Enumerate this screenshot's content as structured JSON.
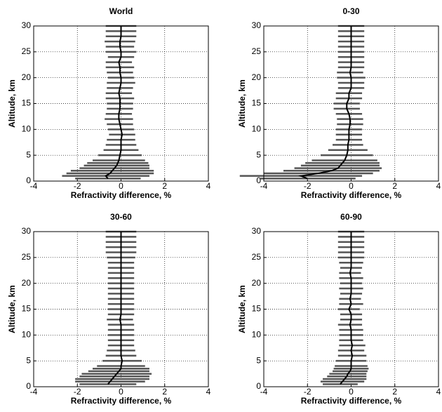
{
  "chart_data": [
    {
      "type": "errorbar",
      "title": "World",
      "xlabel": "Refractivity difference, %",
      "ylabel": "Altitude, km",
      "color": "#000000",
      "bar_color": "#555555",
      "y": [
        0.5,
        1,
        1.5,
        2,
        2.5,
        3,
        3.5,
        4,
        5,
        6,
        7,
        8,
        9,
        10,
        11,
        12,
        13,
        14,
        15,
        16,
        17,
        18,
        19,
        20,
        21,
        22,
        23,
        24,
        25,
        26,
        27,
        28,
        29,
        30
      ],
      "values": [
        -0.6,
        -0.7,
        -0.5,
        -0.4,
        -0.3,
        -0.2,
        -0.15,
        -0.1,
        -0.05,
        0,
        0,
        0,
        0.05,
        0,
        -0.05,
        -0.1,
        -0.1,
        -0.05,
        -0.05,
        -0.05,
        -0.1,
        -0.05,
        0,
        0,
        -0.05,
        -0.05,
        -0.1,
        0,
        0,
        -0.05,
        -0.05,
        0,
        0,
        0
      ],
      "errors": [
        1.5,
        2.0,
        2.0,
        1.9,
        1.6,
        1.5,
        1.4,
        1.2,
        1.0,
        0.8,
        0.7,
        0.65,
        0.6,
        0.6,
        0.6,
        0.65,
        0.6,
        0.6,
        0.6,
        0.65,
        0.6,
        0.6,
        0.65,
        0.6,
        0.6,
        0.65,
        0.6,
        0.6,
        0.7,
        0.65,
        0.7,
        0.7,
        0.7,
        0.7
      ],
      "xlim": [
        -4,
        4
      ],
      "xticks": [
        -4,
        -2,
        0,
        2,
        4
      ],
      "ylim": [
        0,
        30
      ],
      "yticks": [
        0,
        5,
        10,
        15,
        20,
        25,
        30
      ],
      "grid": true
    },
    {
      "type": "errorbar",
      "title": "0-30",
      "xlabel": "Refractivity difference, %",
      "ylabel": "Altitude, km",
      "color": "#000000",
      "bar_color": "#555555",
      "y": [
        0.5,
        1,
        1.5,
        2,
        2.5,
        3,
        3.5,
        4,
        5,
        6,
        7,
        8,
        9,
        10,
        11,
        12,
        13,
        14,
        15,
        16,
        17,
        18,
        19,
        20,
        21,
        22,
        23,
        24,
        25,
        26,
        27,
        28,
        29,
        30
      ],
      "values": [
        -2.0,
        -2.3,
        -1.5,
        -0.9,
        -0.6,
        -0.5,
        -0.4,
        -0.3,
        -0.2,
        -0.15,
        -0.15,
        -0.1,
        -0.1,
        -0.1,
        -0.05,
        -0.05,
        -0.1,
        -0.2,
        -0.2,
        -0.1,
        -0.1,
        0,
        0,
        0,
        -0.05,
        0,
        0,
        0,
        0,
        0,
        0,
        0,
        0,
        0
      ],
      "errors": [
        2.2,
        2.8,
        2.5,
        2.2,
        2.0,
        1.8,
        1.7,
        1.5,
        1.2,
        0.9,
        0.7,
        0.6,
        0.6,
        0.6,
        0.6,
        0.6,
        0.6,
        0.6,
        0.6,
        0.6,
        0.6,
        0.6,
        0.6,
        0.65,
        0.6,
        0.6,
        0.6,
        0.6,
        0.6,
        0.6,
        0.6,
        0.6,
        0.6,
        0.6
      ],
      "xlim": [
        -4,
        4
      ],
      "xticks": [
        -4,
        -2,
        0,
        2,
        4
      ],
      "ylim": [
        0,
        30
      ],
      "yticks": [
        0,
        5,
        10,
        15,
        20,
        25,
        30
      ],
      "grid": true
    },
    {
      "type": "errorbar",
      "title": "30-60",
      "xlabel": "Refractivity difference, %",
      "ylabel": "Altitude, km",
      "color": "#000000",
      "bar_color": "#555555",
      "y": [
        0.5,
        1,
        1.5,
        2,
        2.5,
        3,
        3.5,
        4,
        5,
        6,
        7,
        8,
        9,
        10,
        11,
        12,
        13,
        14,
        15,
        16,
        17,
        18,
        19,
        20,
        21,
        22,
        23,
        24,
        25,
        26,
        27,
        28,
        29,
        30
      ],
      "values": [
        -0.6,
        -0.5,
        -0.4,
        -0.3,
        -0.2,
        -0.1,
        0,
        0,
        0.05,
        0,
        0,
        0,
        0,
        0,
        0,
        0,
        -0.05,
        0,
        0,
        0,
        0,
        0,
        0,
        0,
        0,
        0,
        0,
        0,
        0,
        0,
        0,
        0,
        0,
        0
      ],
      "errors": [
        1.3,
        1.6,
        1.7,
        1.6,
        1.6,
        1.4,
        1.3,
        1.1,
        0.9,
        0.7,
        0.65,
        0.6,
        0.6,
        0.6,
        0.6,
        0.6,
        0.6,
        0.6,
        0.6,
        0.6,
        0.6,
        0.6,
        0.6,
        0.6,
        0.6,
        0.6,
        0.6,
        0.6,
        0.65,
        0.7,
        0.7,
        0.7,
        0.7,
        0.7
      ],
      "xlim": [
        -4,
        4
      ],
      "xticks": [
        -4,
        -2,
        0,
        2,
        4
      ],
      "ylim": [
        0,
        30
      ],
      "yticks": [
        0,
        5,
        10,
        15,
        20,
        25,
        30
      ],
      "grid": true
    },
    {
      "type": "errorbar",
      "title": "60-90",
      "xlabel": "Refractivity difference, %",
      "ylabel": "Altitude, km",
      "color": "#000000",
      "bar_color": "#555555",
      "y": [
        0.5,
        1,
        1.5,
        2,
        2.5,
        3,
        3.5,
        4,
        5,
        6,
        7,
        8,
        9,
        10,
        11,
        12,
        13,
        14,
        15,
        16,
        17,
        18,
        19,
        20,
        21,
        22,
        23,
        24,
        25,
        26,
        27,
        28,
        29,
        30
      ],
      "values": [
        -0.5,
        -0.4,
        -0.3,
        -0.2,
        -0.15,
        -0.05,
        0,
        0,
        0,
        0.05,
        0,
        0.05,
        0,
        0,
        0,
        -0.05,
        0,
        0,
        -0.1,
        0,
        -0.05,
        0,
        0,
        0,
        0,
        -0.05,
        0,
        0,
        0,
        0,
        0,
        0,
        0,
        0
      ],
      "errors": [
        0.8,
        1.0,
        1.0,
        0.9,
        0.85,
        0.8,
        0.8,
        0.75,
        0.7,
        0.65,
        0.6,
        0.6,
        0.55,
        0.55,
        0.55,
        0.55,
        0.5,
        0.5,
        0.5,
        0.55,
        0.5,
        0.5,
        0.55,
        0.5,
        0.55,
        0.5,
        0.5,
        0.55,
        0.6,
        0.6,
        0.6,
        0.6,
        0.6,
        0.6
      ],
      "xlim": [
        -4,
        4
      ],
      "xticks": [
        -4,
        -2,
        0,
        2,
        4
      ],
      "ylim": [
        0,
        30
      ],
      "yticks": [
        0,
        5,
        10,
        15,
        20,
        25,
        30
      ],
      "grid": true
    }
  ]
}
